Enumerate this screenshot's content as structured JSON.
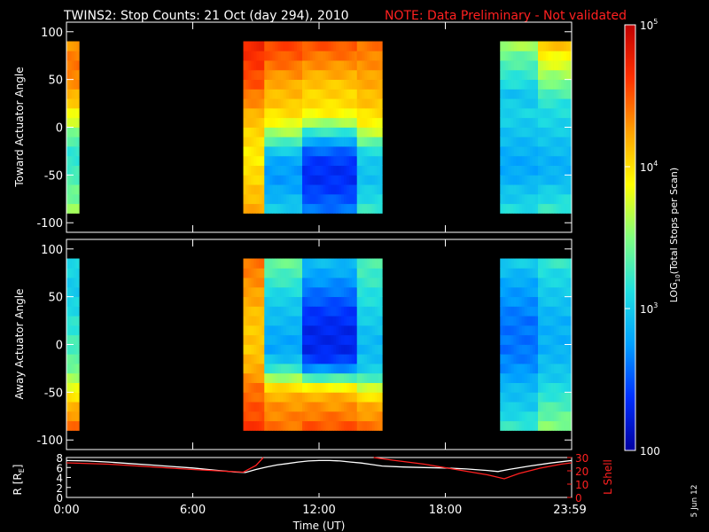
{
  "header": {
    "title": "TWINS2: Stop Counts: 21 Oct (day 294), 2010",
    "note": "NOTE: Data Preliminary - Not validated",
    "note_color": "#ff2020"
  },
  "stamp": "5 Jun 12",
  "chart_data": [
    {
      "type": "heatmap",
      "ylabel": "Toward Actuator Angle",
      "ylim": [
        -110,
        110
      ],
      "yticks": [
        -100,
        -50,
        0,
        50,
        100
      ],
      "xlim": [
        0,
        24
      ],
      "data_segments": [
        {
          "start_h": 0.0,
          "end_h": 0.6,
          "profile": [
            3.55,
            3.45,
            3.4,
            3.32,
            3.25,
            3.18,
            3.2,
            3.3,
            3.5,
            3.7,
            3.9,
            4.05,
            4.2,
            4.3,
            4.35,
            4.4,
            4.35,
            4.3
          ]
        },
        {
          "start_h": 8.4,
          "end_h": 9.4,
          "profile": [
            4.2,
            4.15,
            4.1,
            4.05,
            4.0,
            3.95,
            3.95,
            4.0,
            4.05,
            4.1,
            4.2,
            4.3,
            4.4,
            4.5,
            4.55,
            4.6,
            4.65,
            4.7
          ]
        },
        {
          "start_h": 9.4,
          "end_h": 11.2,
          "profile": [
            3.0,
            2.9,
            2.8,
            2.75,
            2.75,
            2.8,
            3.0,
            3.3,
            3.6,
            3.85,
            4.0,
            4.1,
            4.15,
            4.2,
            4.3,
            4.4,
            4.5,
            4.55
          ]
        },
        {
          "start_h": 11.2,
          "end_h": 13.8,
          "profile": [
            2.6,
            2.5,
            2.4,
            2.35,
            2.35,
            2.4,
            2.55,
            2.8,
            3.2,
            3.6,
            3.9,
            4.0,
            4.05,
            4.1,
            4.2,
            4.3,
            4.4,
            4.5
          ]
        },
        {
          "start_h": 13.8,
          "end_h": 15.0,
          "profile": [
            3.2,
            3.1,
            3.0,
            2.95,
            2.95,
            3.0,
            3.1,
            3.4,
            3.7,
            3.9,
            4.0,
            4.1,
            4.15,
            4.2,
            4.25,
            4.3,
            4.35,
            4.4
          ]
        },
        {
          "start_h": 20.6,
          "end_h": 22.4,
          "profile": [
            3.1,
            3.0,
            2.95,
            2.85,
            2.8,
            2.8,
            2.85,
            2.9,
            2.95,
            3.0,
            3.05,
            3.0,
            2.95,
            3.1,
            3.2,
            3.3,
            3.4,
            3.6
          ]
        },
        {
          "start_h": 22.4,
          "end_h": 24.0,
          "profile": [
            3.2,
            3.1,
            3.0,
            2.9,
            2.85,
            2.85,
            2.9,
            2.95,
            3.0,
            3.05,
            3.1,
            3.15,
            3.3,
            3.45,
            3.6,
            3.75,
            3.9,
            4.1
          ]
        }
      ]
    },
    {
      "type": "heatmap",
      "ylabel": "Away Actuator Angle",
      "ylim": [
        -110,
        110
      ],
      "yticks": [
        -100,
        -50,
        0,
        50,
        100
      ],
      "xlim": [
        0,
        24
      ],
      "data_segments": [
        {
          "start_h": 0.0,
          "end_h": 0.6,
          "profile": [
            4.4,
            4.3,
            4.15,
            4.0,
            3.8,
            3.6,
            3.45,
            3.35,
            3.3,
            3.25,
            3.2,
            3.15,
            3.1,
            3.05,
            3.0,
            3.0,
            3.05,
            3.1
          ]
        },
        {
          "start_h": 8.4,
          "end_h": 9.4,
          "profile": [
            4.6,
            4.55,
            4.5,
            4.45,
            4.4,
            4.3,
            4.2,
            4.15,
            4.1,
            4.1,
            4.1,
            4.1,
            4.15,
            4.2,
            4.25,
            4.3,
            4.35,
            4.4
          ]
        },
        {
          "start_h": 9.4,
          "end_h": 11.2,
          "profile": [
            4.4,
            4.35,
            4.3,
            4.2,
            4.0,
            3.6,
            3.2,
            2.95,
            2.8,
            2.8,
            2.85,
            2.9,
            2.95,
            3.0,
            3.1,
            3.2,
            3.3,
            3.4
          ]
        },
        {
          "start_h": 11.2,
          "end_h": 13.8,
          "profile": [
            4.5,
            4.4,
            4.3,
            4.2,
            3.9,
            3.3,
            2.7,
            2.4,
            2.3,
            2.3,
            2.3,
            2.35,
            2.4,
            2.5,
            2.6,
            2.7,
            2.8,
            2.9
          ]
        },
        {
          "start_h": 13.8,
          "end_h": 15.0,
          "profile": [
            4.4,
            4.3,
            4.2,
            4.0,
            3.7,
            3.3,
            3.0,
            2.95,
            2.9,
            2.9,
            2.95,
            3.0,
            3.05,
            3.1,
            3.15,
            3.2,
            3.25,
            3.3
          ]
        },
        {
          "start_h": 20.6,
          "end_h": 22.4,
          "profile": [
            3.2,
            3.1,
            3.0,
            2.95,
            2.9,
            2.8,
            2.7,
            2.65,
            2.6,
            2.6,
            2.6,
            2.6,
            2.65,
            2.7,
            2.75,
            2.8,
            2.9,
            3.0
          ]
        },
        {
          "start_h": 22.4,
          "end_h": 24.0,
          "profile": [
            3.5,
            3.4,
            3.3,
            3.2,
            3.1,
            3.0,
            2.95,
            2.9,
            2.85,
            2.85,
            2.85,
            2.85,
            2.9,
            2.95,
            3.0,
            3.05,
            3.1,
            3.2
          ]
        }
      ]
    },
    {
      "type": "line",
      "xlabel": "Time (UT)",
      "xlim": [
        0,
        24
      ],
      "xticks": [
        0,
        6,
        12,
        18,
        24
      ],
      "xticklabels": [
        "0:00",
        "6:00",
        "12:00",
        "18:00",
        "23:59"
      ],
      "ylabel_left": "R [R",
      "ylabel_left_sub": "E",
      "ylabel_left_close": "]",
      "ylim_left": [
        0,
        8
      ],
      "yticks_left": [
        0,
        2,
        4,
        6,
        8
      ],
      "ylabel_right": "L Shell",
      "ylim_right": [
        0,
        30
      ],
      "yticks_right": [
        0,
        10,
        20,
        30
      ],
      "series": [
        {
          "axis": "left",
          "color": "#ffffff",
          "x": [
            0,
            1,
            2,
            3,
            4,
            5,
            6,
            7,
            8,
            8.5,
            9,
            9.5,
            10,
            10.5,
            11,
            11.5,
            12,
            12.5,
            13,
            13.5,
            14,
            14.5,
            15,
            16,
            17,
            18,
            19,
            20,
            20.5,
            21,
            22,
            23,
            24
          ],
          "y": [
            7.4,
            7.3,
            7.1,
            6.8,
            6.5,
            6.2,
            5.9,
            5.5,
            5.1,
            5.0,
            5.6,
            6.1,
            6.5,
            6.8,
            7.1,
            7.3,
            7.4,
            7.4,
            7.3,
            7.1,
            6.9,
            6.6,
            6.3,
            6.1,
            6.0,
            5.9,
            5.7,
            5.4,
            5.2,
            5.6,
            6.3,
            6.9,
            7.4
          ]
        },
        {
          "axis": "right",
          "color": "#ff2020",
          "x": [
            0,
            2,
            4,
            6,
            8.4,
            9.0,
            9.35
          ],
          "y": [
            26,
            25,
            23,
            21,
            19,
            24,
            30
          ]
        },
        {
          "axis": "right",
          "color": "#ff2020",
          "x": [
            14.6,
            15.5,
            17,
            18.5,
            20.0,
            20.8,
            21.5,
            22.5,
            23.5,
            24
          ],
          "y": [
            30,
            28,
            25,
            21,
            17,
            14,
            18,
            22,
            25,
            26
          ]
        }
      ]
    },
    {
      "type": "colorbar",
      "label_main": "LOG",
      "label_sub": "10",
      "label_rest": "(Total Stops per Scan)",
      "range_log": [
        2,
        5
      ],
      "ticks": [
        {
          "log": 5,
          "base": "10",
          "exp": "5"
        },
        {
          "log": 4,
          "base": "10",
          "exp": "4"
        },
        {
          "log": 3,
          "base": "10",
          "exp": "3"
        },
        {
          "log": 2,
          "base": "100",
          "exp": ""
        }
      ],
      "colors": [
        "#0000a0",
        "#0030ff",
        "#00a0ff",
        "#20e0e0",
        "#80ff80",
        "#ffff00",
        "#ffa000",
        "#ff3000",
        "#c00000"
      ]
    }
  ]
}
